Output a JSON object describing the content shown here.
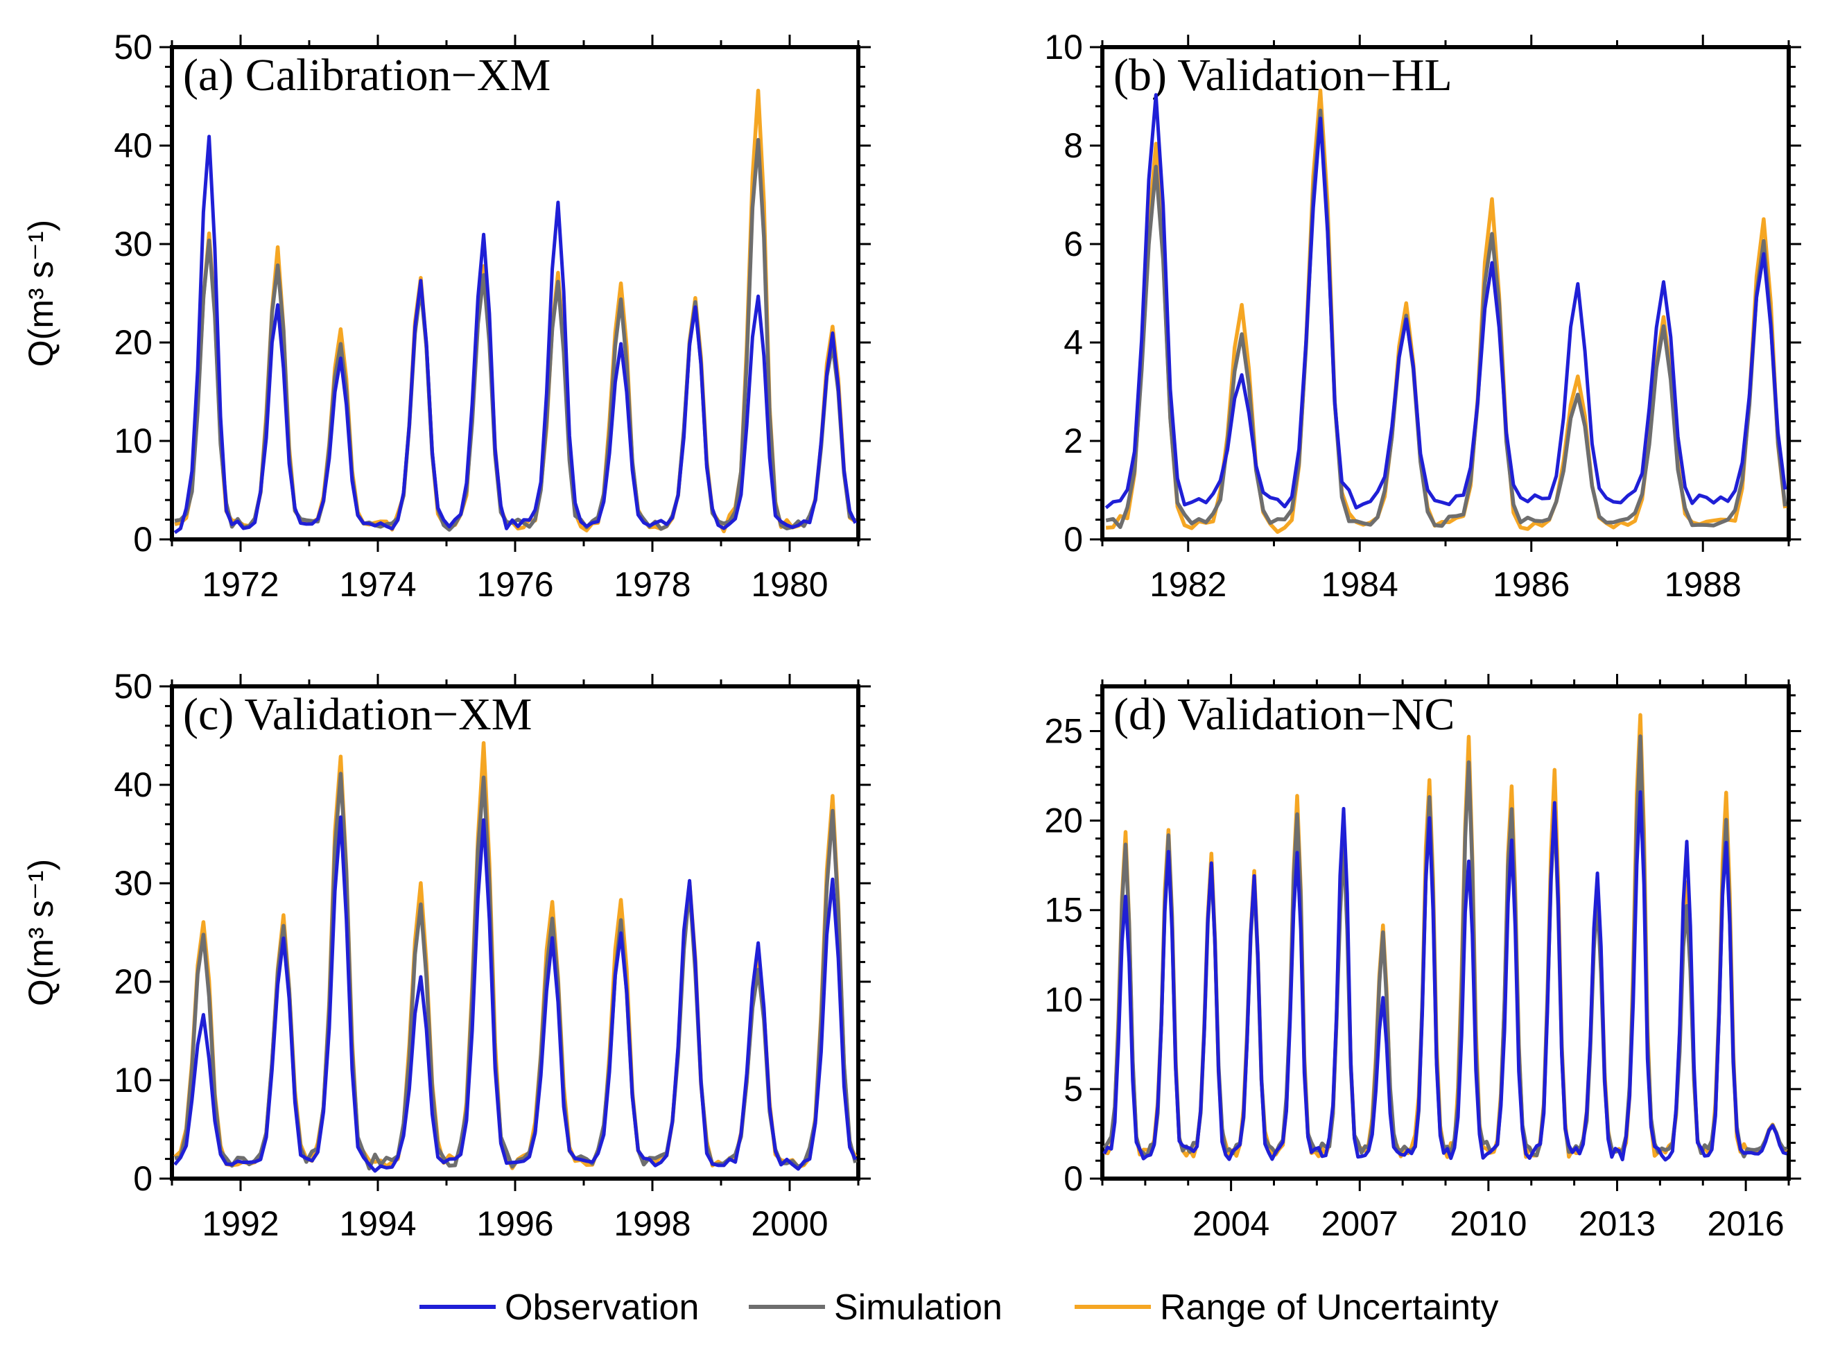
{
  "legend": {
    "placement": "bottom-center",
    "items": [
      {
        "label": "Observation",
        "color": "#1f1fd6"
      },
      {
        "label": "Simulation",
        "color": "#6e6e6e"
      },
      {
        "label": "Range of Uncertainty",
        "color": "#f5a623"
      }
    ]
  },
  "chart_data": [
    {
      "type": "line",
      "title": "(a) Calibration−XM",
      "ylabel": "Q(m³ s⁻¹)",
      "xlim": [
        1971.0,
        1981.0
      ],
      "ylim": [
        0,
        50
      ],
      "x_ticks": [
        1972,
        1974,
        1976,
        1978,
        1980
      ],
      "y_ticks": [
        0,
        10,
        20,
        30,
        40,
        50
      ],
      "grid": false,
      "peak_month": [
        7,
        7,
        6,
        8,
        7,
        8,
        7,
        8,
        7,
        8
      ],
      "series": [
        {
          "name": "Observation",
          "color": "#1f1fd6",
          "baseflow": 1.5,
          "start_year": 1971,
          "peaks": [
            41,
            24,
            18.5,
            26.5,
            30.5,
            34,
            20,
            24,
            25,
            21
          ]
        },
        {
          "name": "Simulation",
          "color": "#6e6e6e",
          "baseflow": 1.5,
          "start_year": 1971,
          "peaks": [
            30,
            28,
            20,
            26,
            27,
            26,
            24.5,
            24,
            41,
            20
          ]
        },
        {
          "name": "Range of Uncertainty",
          "color": "#f5a623",
          "baseflow": 1.4,
          "start_year": 1971,
          "peaks": [
            31,
            29.5,
            21.5,
            27,
            28,
            27,
            26,
            25,
            45.5,
            21.5
          ]
        }
      ]
    },
    {
      "type": "line",
      "title": "(b) Validation−HL",
      "ylabel": "",
      "xlim": [
        1981.0,
        1989.0
      ],
      "ylim": [
        0,
        10
      ],
      "x_ticks": [
        1982,
        1984,
        1986,
        1988
      ],
      "y_ticks": [
        0,
        2,
        4,
        6,
        8,
        10
      ],
      "grid": false,
      "peak_month": [
        8,
        8,
        7,
        7,
        7,
        7,
        7,
        9
      ],
      "series": [
        {
          "name": "Observation",
          "color": "#1f1fd6",
          "baseflow": 0.8,
          "start_year": 1981,
          "peaks": [
            9,
            3.3,
            8.4,
            4.5,
            5.6,
            5.1,
            5.3,
            5.8
          ]
        },
        {
          "name": "Simulation",
          "color": "#6e6e6e",
          "baseflow": 0.35,
          "start_year": 1981,
          "peaks": [
            7.5,
            4.2,
            8.8,
            4.5,
            6.3,
            3.0,
            4.3,
            6.0
          ]
        },
        {
          "name": "Range of Uncertainty",
          "color": "#f5a623",
          "baseflow": 0.3,
          "start_year": 1981,
          "peaks": [
            7.9,
            4.7,
            9.2,
            4.8,
            6.8,
            3.3,
            4.5,
            6.5
          ]
        }
      ]
    },
    {
      "type": "line",
      "title": "(c) Validation−XM",
      "ylabel": "Q(m³ s⁻¹)",
      "xlim": [
        1991.0,
        2001.0
      ],
      "ylim": [
        0,
        50
      ],
      "x_ticks": [
        1992,
        1994,
        1996,
        1998,
        2000
      ],
      "y_ticks": [
        0,
        10,
        20,
        30,
        40,
        50
      ],
      "grid": false,
      "peak_month": [
        6,
        8,
        6,
        8,
        7,
        7,
        7,
        7,
        7,
        8
      ],
      "series": [
        {
          "name": "Observation",
          "color": "#1f1fd6",
          "baseflow": 1.5,
          "start_year": 1991,
          "peaks": [
            16.5,
            24.5,
            36.5,
            20.5,
            36,
            24,
            25,
            30.5,
            23.5,
            30
          ]
        },
        {
          "name": "Simulation",
          "color": "#6e6e6e",
          "baseflow": 1.8,
          "start_year": 1991,
          "peaks": [
            25,
            25.5,
            41.5,
            28,
            41,
            26.5,
            26,
            29,
            21,
            37
          ]
        },
        {
          "name": "Range of Uncertainty",
          "color": "#f5a623",
          "baseflow": 1.7,
          "start_year": 1991,
          "peaks": [
            26.5,
            26.5,
            43,
            29.5,
            43.5,
            28,
            28,
            30,
            22,
            38.5
          ]
        }
      ]
    },
    {
      "type": "line",
      "title": "(d) Validation−NC",
      "ylabel": "",
      "xlim": [
        2001.0,
        2017.0
      ],
      "ylim": [
        0,
        27.5
      ],
      "x_ticks": [
        2004,
        2007,
        2010,
        2013,
        2016
      ],
      "y_ticks": [
        0,
        5,
        10,
        15,
        20,
        25
      ],
      "grid": false,
      "peak_month": [
        7,
        7,
        7,
        7,
        7,
        8,
        7,
        8,
        7,
        7,
        7,
        7,
        7,
        8,
        7,
        8
      ],
      "series": [
        {
          "name": "Observation",
          "color": "#1f1fd6",
          "baseflow": 1.4,
          "start_year": 2001,
          "peaks": [
            16,
            18.5,
            17.5,
            17,
            18.5,
            21,
            10,
            20,
            18,
            19,
            21,
            17,
            22,
            18.5,
            19,
            3
          ]
        },
        {
          "name": "Simulation",
          "color": "#6e6e6e",
          "baseflow": 1.6,
          "start_year": 2001,
          "peaks": [
            18.5,
            19,
            17.5,
            16.5,
            20.5,
            18.5,
            13.5,
            21,
            23.5,
            21,
            21,
            15.5,
            24.5,
            15.5,
            20,
            3
          ]
        },
        {
          "name": "Range of Uncertainty",
          "color": "#f5a623",
          "baseflow": 1.5,
          "start_year": 2001,
          "peaks": [
            19.5,
            19.5,
            18,
            17,
            21.3,
            19.3,
            14,
            22.5,
            24.8,
            22.3,
            22.5,
            16.5,
            26,
            16.5,
            21.3,
            3
          ]
        }
      ]
    }
  ]
}
